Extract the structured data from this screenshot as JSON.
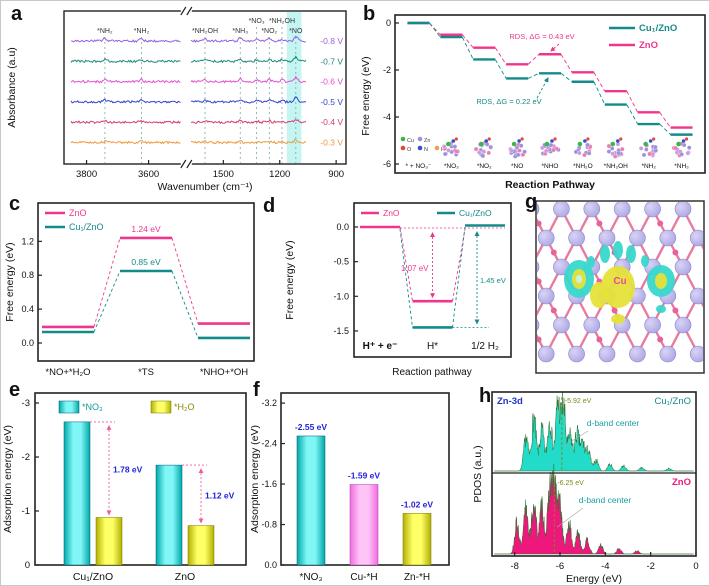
{
  "chart_data": [
    {
      "panel": "a",
      "type": "line",
      "xlabel": "Wavenumber (cm⁻¹)",
      "ylabel": "Absorbance (a.u)",
      "x_ticks": [
        {
          "text": "3800",
          "pos": 0.08
        },
        {
          "text": "3600",
          "pos": 0.3
        },
        {
          "text": "1500",
          "pos": 0.565
        },
        {
          "text": "1200",
          "pos": 0.765
        },
        {
          "text": "900",
          "pos": 0.965
        }
      ],
      "break_pos": 0.432,
      "series": [
        {
          "name": "-0.8 V",
          "color": "#9a5fe0"
        },
        {
          "name": "-0.7 V",
          "color": "#1d8a78"
        },
        {
          "name": "-0.6 V",
          "color": "#e44fd2"
        },
        {
          "name": "-0.5 V",
          "color": "#3743cf"
        },
        {
          "name": "-0.4 V",
          "color": "#d63a6e"
        },
        {
          "name": "-0.3 V",
          "color": "#f0993a"
        }
      ],
      "peaks": [
        {
          "text": "*NH₂",
          "pos": 0.145,
          "row": 0
        },
        {
          "text": "*NH₂",
          "pos": 0.275,
          "row": 0
        },
        {
          "text": "*NH₂OH",
          "pos": 0.5,
          "row": 0
        },
        {
          "text": "*NH₃",
          "pos": 0.625,
          "row": 0
        },
        {
          "text": "*NO₃",
          "pos": 0.683,
          "row": 1
        },
        {
          "text": "*NO₂",
          "pos": 0.728,
          "row": 0
        },
        {
          "text": "*NH₂OH",
          "pos": 0.773,
          "row": 1
        },
        {
          "text": "*NO",
          "pos": 0.822,
          "row": 0
        }
      ],
      "band": {
        "from": 0.79,
        "to": 0.842,
        "color": "#b5f2ef"
      }
    },
    {
      "panel": "b",
      "type": "step-line",
      "xlabel": "Reaction Pathway",
      "ylabel": "Free energy (eV)",
      "yticks": [
        0,
        -2,
        -4,
        -6
      ],
      "ylim": [
        -6,
        0
      ],
      "categories": [
        "* + NO₃⁻",
        "*NO₃",
        "*NO₂",
        "*NO",
        "*NHO",
        "*NH₂O",
        "*NH₂OH",
        "*NH₂",
        "*NH₃"
      ],
      "series": [
        {
          "name": "Cu₁/ZnO",
          "color": "#148b8b",
          "values": [
            0,
            -0.6,
            -1.55,
            -2.36,
            -2.14,
            -2.5,
            -3.47,
            -4.3,
            -4.75
          ]
        },
        {
          "name": "ZnO",
          "color": "#f0368c",
          "values": [
            0,
            -0.5,
            -1.05,
            -1.76,
            -1.33,
            -2.1,
            -2.9,
            -3.8,
            -4.45
          ]
        }
      ],
      "annotations": [
        {
          "text": "RDS, ΔG = 0.43 eV",
          "color": "#f0368c"
        },
        {
          "text": "RDS, ΔG = 0.22 eV",
          "color": "#148b8b"
        }
      ],
      "atom_legend": [
        {
          "label": "Cu",
          "color": "#3cb54a"
        },
        {
          "label": "Zn",
          "color": "#9a92dd"
        },
        {
          "label": "O",
          "color": "#e8433c"
        },
        {
          "label": "N",
          "color": "#2f51c9"
        },
        {
          "label": "H",
          "color": "#f0a04a"
        }
      ]
    },
    {
      "panel": "c",
      "type": "step-line",
      "ylabel": "Free energy (eV)",
      "yticks": [
        "0.0",
        "0.4",
        "0.8",
        "1.2"
      ],
      "categories": [
        "*NO+*H₂O",
        "*TS",
        "*NHO+*OH"
      ],
      "series": [
        {
          "name": "ZnO",
          "color": "#f0368c",
          "values": [
            0.19,
            1.24,
            0.23
          ]
        },
        {
          "name": "Cu₁/ZnO",
          "color": "#148b8b",
          "values": [
            0.13,
            0.85,
            0.06
          ]
        }
      ],
      "annotations": [
        {
          "text": "1.24 eV",
          "color": "#f0368c"
        },
        {
          "text": "0.85 eV",
          "color": "#148b8b"
        }
      ]
    },
    {
      "panel": "d",
      "type": "step-line",
      "xlabel": "Reaction pathway",
      "ylabel": "Free energy (eV)",
      "yticks": [
        "0.0",
        "-0.5",
        "-1.0",
        "-1.5"
      ],
      "categories": [
        "H⁺ + e⁻",
        "H*",
        "1/2 H₂"
      ],
      "series": [
        {
          "name": "ZnO",
          "color": "#f0368c",
          "values": [
            0,
            -1.07,
            0
          ]
        },
        {
          "name": "Cu₁/ZnO",
          "color": "#148b8b",
          "values": [
            0,
            -1.45,
            0
          ]
        }
      ],
      "annotations": [
        {
          "text": "1.07 eV",
          "color": "#f0368c"
        },
        {
          "text": "1.45 eV",
          "color": "#148b8b"
        }
      ]
    },
    {
      "panel": "e",
      "type": "bar",
      "ylabel": "Adsorption energy (eV)",
      "yticks": [
        "0",
        "-1",
        "-2",
        "-3"
      ],
      "categories": [
        "Cu₁/ZnO",
        "ZnO"
      ],
      "series": [
        {
          "name": "*NO₃",
          "color_key": "cyan",
          "values": [
            -2.65,
            -1.85
          ]
        },
        {
          "name": "*H₂O",
          "color_key": "yellow",
          "values": [
            -0.88,
            -0.73
          ]
        }
      ],
      "annotations": [
        {
          "text": "1.78 eV"
        },
        {
          "text": "1.12 eV"
        }
      ]
    },
    {
      "panel": "f",
      "type": "bar",
      "ylabel": "Adsorption energy (eV)",
      "yticks": [
        "0.0",
        "-0.8",
        "-1.6",
        "-2.4",
        "-3.2"
      ],
      "categories": [
        "*NO₃",
        "Cu-*H",
        "Zn-*H"
      ],
      "values": [
        -2.55,
        -1.59,
        -1.02
      ],
      "bar_colors": [
        "cyan",
        "pink",
        "yellow"
      ],
      "value_labels": [
        "-2.55 eV",
        "-1.59 eV",
        "-1.02 eV"
      ]
    },
    {
      "panel": "g",
      "type": "structure",
      "center_label": "Cu",
      "colors": {
        "zn_atom": "#a8a2e2",
        "o_atom": "#e8639a",
        "bond": "#e87a9e",
        "charge_gain": "#e5e23a",
        "charge_loss": "#38d8cc",
        "label": "#f2479a"
      }
    },
    {
      "panel": "h",
      "type": "area",
      "xlabel": "Energy (eV)",
      "ylabel": "PDOS (a.u.)",
      "xticks": [
        "-8",
        "-6",
        "-4",
        "-2",
        "0"
      ],
      "orbital_label": "Zn-3d",
      "panels": [
        {
          "name": "Cu₁/ZnO",
          "color": "#22dcc9",
          "dband_label": "-5.92 eV",
          "dband": -5.92,
          "annotation": "d-band center",
          "peaks": [
            [
              -7.5,
              0.5
            ],
            [
              -7.15,
              0.8
            ],
            [
              -6.8,
              0.62
            ],
            [
              -6.45,
              0.78
            ],
            [
              -6.1,
              1.0
            ],
            [
              -5.85,
              0.95
            ],
            [
              -5.55,
              0.52
            ],
            [
              -5.25,
              0.55
            ],
            [
              -5.0,
              0.4
            ],
            [
              -4.75,
              0.3
            ],
            [
              -4.4,
              0.16
            ],
            [
              -3.8,
              0.1
            ],
            [
              -3.2,
              0.08
            ],
            [
              -2.4,
              0.05
            ],
            [
              -1.2,
              0.04
            ]
          ]
        },
        {
          "name": "ZnO",
          "color": "#ee187c",
          "dband_label": "-6.25 eV",
          "dband": -6.25,
          "annotation": "d-band center",
          "peaks": [
            [
              -7.9,
              0.45
            ],
            [
              -7.5,
              0.68
            ],
            [
              -7.15,
              0.75
            ],
            [
              -6.8,
              0.7
            ],
            [
              -6.45,
              0.88
            ],
            [
              -6.25,
              1.0
            ],
            [
              -6.0,
              0.72
            ],
            [
              -5.6,
              0.45
            ],
            [
              -5.2,
              0.32
            ],
            [
              -4.8,
              0.2
            ],
            [
              -4.2,
              0.13
            ],
            [
              -3.4,
              0.08
            ],
            [
              -2.6,
              0.05
            ]
          ]
        }
      ]
    }
  ],
  "style_colors": {
    "cyan": "#00d8d8",
    "yellow": "#e0e000",
    "pink": "#fa86ee",
    "annotation_blue": "#2222dd",
    "dband_olive": "#7a8a1a",
    "dimension_pink": "#f05a9a",
    "teal": "#148b8b",
    "magenta": "#f0368c"
  }
}
